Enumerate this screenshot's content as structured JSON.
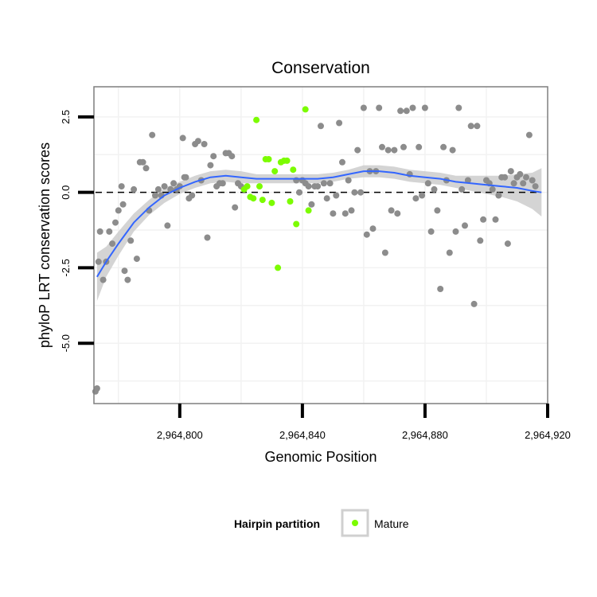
{
  "chart_data": {
    "type": "scatter",
    "title": "Conservation",
    "xlabel": "Genomic Position",
    "ylabel": "phyloP LRT conservation scores",
    "xlim": [
      2964772,
      2964920
    ],
    "ylim": [
      -7.0,
      3.5
    ],
    "x_ticks": [
      2964800,
      2964840,
      2964880,
      2964920
    ],
    "x_tick_labels": [
      "2,964,800",
      "2,964,840",
      "2,964,880",
      "2,964,920"
    ],
    "y_ticks": [
      2.5,
      0.0,
      -2.5,
      -5.0
    ],
    "y_tick_labels": [
      "2.5",
      "0.0",
      "-2.5",
      "-5.0"
    ],
    "reference_line": {
      "y": 0.0,
      "style": "dashed"
    },
    "colors": {
      "other": "#8c8c8c",
      "mature": "#7cfc00",
      "smooth": "#3366ff",
      "ribbon": "#cccccc",
      "panel_border": "#7f7f7f",
      "grid": "#f2f2f2"
    },
    "legend": {
      "title": "Hairpin partition",
      "entries": [
        {
          "label": "Mature",
          "color": "#7cfc00"
        }
      ],
      "position": "bottom"
    },
    "series": [
      {
        "name": "Other",
        "points": [
          [
            2964772.5,
            -6.6
          ],
          [
            2964773,
            -6.5
          ],
          [
            2964773.5,
            -2.3
          ],
          [
            2964774,
            -1.3
          ],
          [
            2964775,
            -2.9
          ],
          [
            2964776,
            -2.3
          ],
          [
            2964777,
            -1.3
          ],
          [
            2964778,
            -1.7
          ],
          [
            2964779,
            -1.0
          ],
          [
            2964780,
            -0.6
          ],
          [
            2964781,
            0.2
          ],
          [
            2964781.5,
            -0.4
          ],
          [
            2964782,
            -2.6
          ],
          [
            2964783,
            -2.9
          ],
          [
            2964784,
            -1.6
          ],
          [
            2964785,
            0.1
          ],
          [
            2964786,
            -2.2
          ],
          [
            2964787,
            1.0
          ],
          [
            2964788,
            1.0
          ],
          [
            2964789,
            0.8
          ],
          [
            2964790,
            -0.6
          ],
          [
            2964791,
            1.9
          ],
          [
            2964792,
            -0.1
          ],
          [
            2964793,
            0.1
          ],
          [
            2964794,
            -0.1
          ],
          [
            2964795,
            0.2
          ],
          [
            2964796,
            -1.1
          ],
          [
            2964797,
            0.1
          ],
          [
            2964798,
            0.3
          ],
          [
            2964799,
            0.1
          ],
          [
            2964800,
            0.2
          ],
          [
            2964801,
            1.8
          ],
          [
            2964801.5,
            0.5
          ],
          [
            2964802,
            0.5
          ],
          [
            2964803,
            -0.2
          ],
          [
            2964804,
            -0.1
          ],
          [
            2964805,
            1.6
          ],
          [
            2964806,
            1.7
          ],
          [
            2964807,
            0.4
          ],
          [
            2964808,
            1.6
          ],
          [
            2964809,
            -1.5
          ],
          [
            2964810,
            0.9
          ],
          [
            2964811,
            1.2
          ],
          [
            2964812,
            0.2
          ],
          [
            2964813,
            0.3
          ],
          [
            2964814,
            0.3
          ],
          [
            2964815,
            1.3
          ],
          [
            2964816,
            1.3
          ],
          [
            2964817,
            1.2
          ],
          [
            2964818,
            -0.5
          ],
          [
            2964819,
            0.3
          ],
          [
            2964820,
            0.2
          ],
          [
            2964838,
            0.4
          ],
          [
            2964839,
            0.0
          ],
          [
            2964840,
            0.4
          ],
          [
            2964841,
            0.3
          ],
          [
            2964842,
            0.2
          ],
          [
            2964843,
            -0.4
          ],
          [
            2964844,
            0.2
          ],
          [
            2964845,
            0.2
          ],
          [
            2964846,
            2.2
          ],
          [
            2964847,
            0.3
          ],
          [
            2964848,
            -0.2
          ],
          [
            2964849,
            0.3
          ],
          [
            2964850,
            -0.7
          ],
          [
            2964851,
            -0.1
          ],
          [
            2964852,
            2.3
          ],
          [
            2964853,
            1.0
          ],
          [
            2964854,
            -0.7
          ],
          [
            2964855,
            0.4
          ],
          [
            2964856,
            -0.6
          ],
          [
            2964857,
            0.0
          ],
          [
            2964858,
            1.4
          ],
          [
            2964859,
            0.0
          ],
          [
            2964860,
            2.8
          ],
          [
            2964861,
            -1.4
          ],
          [
            2964862,
            0.7
          ],
          [
            2964863,
            -1.2
          ],
          [
            2964864,
            0.7
          ],
          [
            2964865,
            2.8
          ],
          [
            2964866,
            1.5
          ],
          [
            2964867,
            -2.0
          ],
          [
            2964868,
            1.4
          ],
          [
            2964869,
            -0.6
          ],
          [
            2964870,
            1.4
          ],
          [
            2964871,
            -0.7
          ],
          [
            2964872,
            2.7
          ],
          [
            2964873,
            1.5
          ],
          [
            2964874,
            2.7
          ],
          [
            2964875,
            0.6
          ],
          [
            2964876,
            2.8
          ],
          [
            2964877,
            -0.2
          ],
          [
            2964878,
            1.5
          ],
          [
            2964879,
            -0.1
          ],
          [
            2964880,
            2.8
          ],
          [
            2964881,
            0.3
          ],
          [
            2964882,
            -1.3
          ],
          [
            2964883,
            0.1
          ],
          [
            2964884,
            -0.6
          ],
          [
            2964885,
            -3.2
          ],
          [
            2964886,
            1.5
          ],
          [
            2964887,
            0.4
          ],
          [
            2964888,
            -2.0
          ],
          [
            2964889,
            1.4
          ],
          [
            2964890,
            -1.3
          ],
          [
            2964891,
            2.8
          ],
          [
            2964892,
            0.1
          ],
          [
            2964893,
            -1.1
          ],
          [
            2964894,
            0.4
          ],
          [
            2964895,
            2.2
          ],
          [
            2964896,
            -3.7
          ],
          [
            2964897,
            2.2
          ],
          [
            2964898,
            -1.6
          ],
          [
            2964899,
            -0.9
          ],
          [
            2964900,
            0.4
          ],
          [
            2964901,
            0.3
          ],
          [
            2964902,
            0.1
          ],
          [
            2964903,
            -0.9
          ],
          [
            2964904,
            -0.1
          ],
          [
            2964905,
            0.5
          ],
          [
            2964906,
            0.5
          ],
          [
            2964907,
            -1.7
          ],
          [
            2964908,
            0.7
          ],
          [
            2964909,
            0.3
          ],
          [
            2964910,
            0.5
          ],
          [
            2964911,
            0.6
          ],
          [
            2964912,
            0.3
          ],
          [
            2964913,
            0.5
          ],
          [
            2964914,
            1.9
          ],
          [
            2964915,
            0.4
          ],
          [
            2964916,
            0.2
          ]
        ]
      },
      {
        "name": "Mature",
        "points": [
          [
            2964821,
            0.1
          ],
          [
            2964822,
            0.2
          ],
          [
            2964823,
            -0.15
          ],
          [
            2964824,
            -0.2
          ],
          [
            2964825,
            2.4
          ],
          [
            2964826,
            0.2
          ],
          [
            2964827,
            -0.25
          ],
          [
            2964828,
            1.1
          ],
          [
            2964829,
            1.1
          ],
          [
            2964830,
            -0.35
          ],
          [
            2964831,
            0.7
          ],
          [
            2964832,
            -2.5
          ],
          [
            2964833,
            1.0
          ],
          [
            2964834,
            1.05
          ],
          [
            2964835,
            1.05
          ],
          [
            2964836,
            -0.3
          ],
          [
            2964837,
            0.75
          ],
          [
            2964838,
            -1.05
          ],
          [
            2964841,
            2.75
          ],
          [
            2964842,
            -0.6
          ]
        ]
      }
    ],
    "smooth": {
      "x": [
        2964773,
        2964776,
        2964780,
        2964785,
        2964790,
        2964795,
        2964800,
        2964805,
        2964810,
        2964815,
        2964820,
        2964825,
        2964830,
        2964835,
        2964840,
        2964845,
        2964850,
        2964855,
        2964860,
        2964865,
        2964870,
        2964875,
        2964880,
        2964885,
        2964890,
        2964895,
        2964900,
        2964905,
        2964910,
        2964915,
        2964918
      ],
      "y": [
        -2.8,
        -2.3,
        -1.7,
        -1.0,
        -0.5,
        -0.1,
        0.15,
        0.35,
        0.5,
        0.55,
        0.5,
        0.45,
        0.45,
        0.45,
        0.45,
        0.45,
        0.5,
        0.6,
        0.7,
        0.7,
        0.65,
        0.55,
        0.5,
        0.45,
        0.35,
        0.3,
        0.25,
        0.2,
        0.15,
        0.05,
        0.0
      ],
      "lower": [
        -3.6,
        -2.8,
        -2.1,
        -1.3,
        -0.75,
        -0.35,
        -0.05,
        0.15,
        0.3,
        0.35,
        0.3,
        0.3,
        0.3,
        0.3,
        0.3,
        0.3,
        0.35,
        0.45,
        0.5,
        0.5,
        0.45,
        0.35,
        0.3,
        0.25,
        0.15,
        0.05,
        -0.05,
        -0.15,
        -0.3,
        -0.55,
        -0.8
      ],
      "upper": [
        -2.0,
        -1.8,
        -1.3,
        -0.7,
        -0.25,
        0.15,
        0.35,
        0.55,
        0.7,
        0.75,
        0.7,
        0.6,
        0.6,
        0.6,
        0.6,
        0.6,
        0.65,
        0.75,
        0.9,
        0.9,
        0.85,
        0.75,
        0.7,
        0.65,
        0.55,
        0.55,
        0.55,
        0.55,
        0.6,
        0.65,
        0.8
      ]
    }
  }
}
